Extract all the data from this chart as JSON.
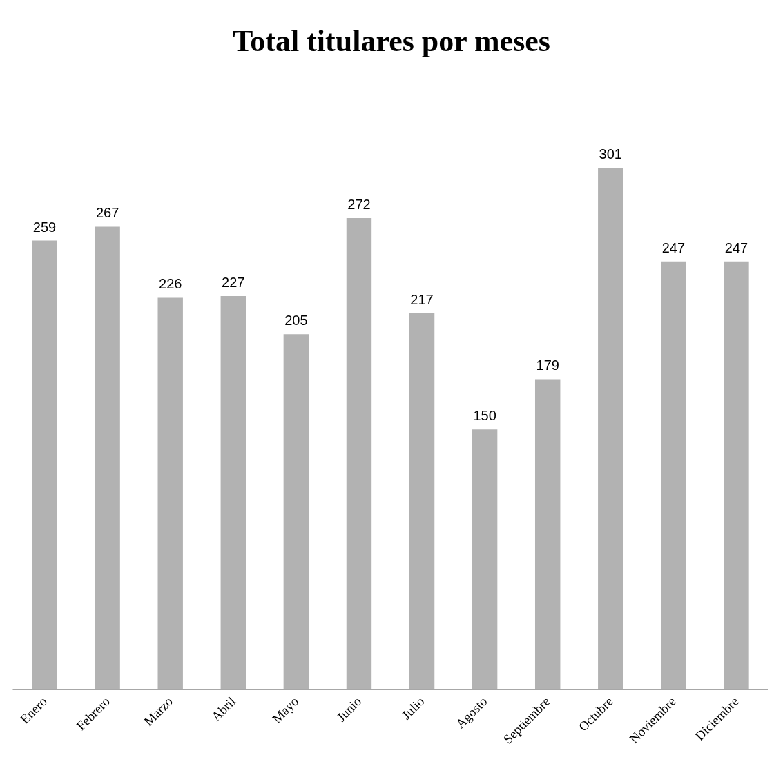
{
  "chart_data": {
    "type": "bar",
    "title": "Total titulares por meses",
    "categories": [
      "Enero",
      "Febrero",
      "Marzo",
      "Abril",
      "Mayo",
      "Junio",
      "Julio",
      "Agosto",
      "Septiembre",
      "Octubre",
      "Noviembre",
      "Diciembre"
    ],
    "values": [
      259,
      267,
      226,
      227,
      205,
      272,
      217,
      150,
      179,
      301,
      247,
      247
    ],
    "color": "#b2b2b2",
    "data_labels": true
  }
}
